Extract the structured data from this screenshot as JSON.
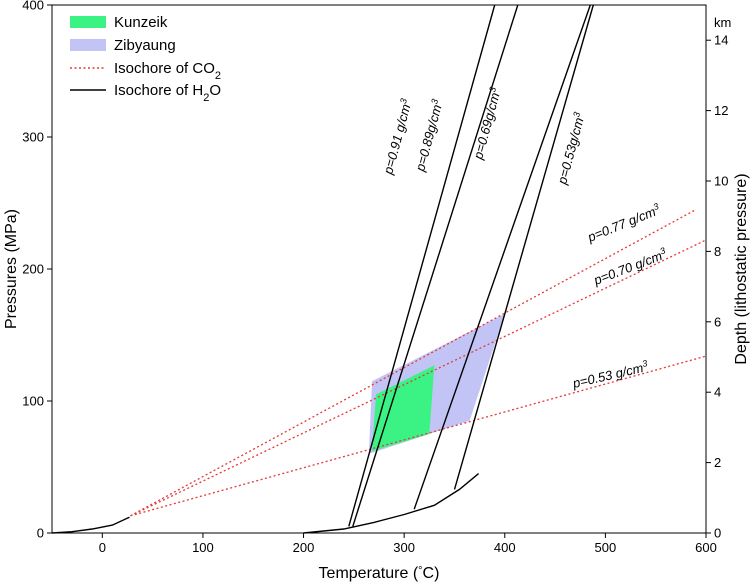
{
  "chart_data": {
    "type": "line",
    "xlabel": "Temperature (",
    "xlabel_unit": "°C",
    "xlabel_close": ")",
    "ylabel": "Pressures (MPa)",
    "y2label": "Depth (lithostatic pressure)",
    "y2unit": "km",
    "xlim": [
      -50,
      600
    ],
    "ylim": [
      0,
      400
    ],
    "y2lim": [
      0,
      15
    ],
    "xticks": [
      0,
      100,
      200,
      300,
      400,
      500,
      600
    ],
    "xtick_labels": [
      "0",
      "100",
      "200",
      "300",
      "400",
      "500",
      "600"
    ],
    "yticks": [
      0,
      100,
      200,
      300,
      400
    ],
    "ytick_labels": [
      "0",
      "100",
      "200",
      "300",
      "400"
    ],
    "y2ticks": [
      0,
      2,
      4,
      6,
      8,
      10,
      12,
      14
    ],
    "y2tick_labels": [
      "0",
      "2",
      "4",
      "6",
      "8",
      "10",
      "12",
      "14"
    ],
    "legend_position": "top-left",
    "legend": [
      {
        "label": "Kunzeik",
        "sub": "",
        "kind": "fill",
        "color": "#3bf285"
      },
      {
        "label": "Zibyaung",
        "sub": "",
        "kind": "fill",
        "color": "#c2c4f5"
      },
      {
        "label": "Isochore of CO",
        "sub": "2",
        "kind": "dotted",
        "color": "#e53935"
      },
      {
        "label": "Isochore of H",
        "sub": "2",
        "tail": "O",
        "kind": "solid",
        "color": "#000000"
      }
    ],
    "co2_saturation_curve": {
      "color": "#000000",
      "points": [
        [
          -50,
          0
        ],
        [
          -30,
          1
        ],
        [
          -10,
          3
        ],
        [
          10,
          6
        ],
        [
          27,
          12
        ]
      ]
    },
    "h2o_saturation_curve": {
      "color": "#000000",
      "points": [
        [
          200,
          0
        ],
        [
          240,
          3
        ],
        [
          270,
          8
        ],
        [
          300,
          14
        ],
        [
          330,
          21
        ],
        [
          355,
          33
        ],
        [
          374,
          45
        ]
      ]
    },
    "co2_isochores": [
      {
        "label": "p=0.77 g/cm",
        "sup": "3",
        "color": "#e53935",
        "points": [
          [
            28,
            13
          ],
          [
            590,
            245
          ]
        ]
      },
      {
        "label": "p=0.70 g/cm",
        "sup": "3",
        "color": "#e53935",
        "points": [
          [
            28,
            13
          ],
          [
            600,
            222
          ]
        ]
      },
      {
        "label": "p=0.53 g/cm",
        "sup": "3",
        "color": "#e53935",
        "points": [
          [
            28,
            13
          ],
          [
            600,
            134
          ]
        ]
      }
    ],
    "h2o_isochores": [
      {
        "label": "p=0.91 g/cm",
        "sup": "3",
        "color": "#000000",
        "points": [
          [
            245,
            5
          ],
          [
            390,
            400
          ]
        ]
      },
      {
        "label": "p=0.89g/cm",
        "sup": "3",
        "color": "#000000",
        "points": [
          [
            249,
            5
          ],
          [
            413,
            400
          ]
        ]
      },
      {
        "label": "p=0.69g/cm",
        "sup": "3",
        "color": "#000000",
        "points": [
          [
            310,
            18
          ],
          [
            485,
            400
          ]
        ]
      },
      {
        "label": "p=0.53g/cm",
        "sup": "3",
        "color": "#000000",
        "points": [
          [
            350,
            33
          ],
          [
            488,
            400
          ]
        ]
      }
    ],
    "zibyaung_region": {
      "color": "#c2c4f5",
      "points": [
        [
          268,
          115
        ],
        [
          400,
          166
        ],
        [
          365,
          85
        ],
        [
          265,
          60
        ]
      ]
    },
    "kunzeik_region": {
      "color": "#3bf285",
      "points": [
        [
          272,
          105
        ],
        [
          330,
          127
        ],
        [
          325,
          75
        ],
        [
          268,
          62
        ]
      ]
    }
  }
}
